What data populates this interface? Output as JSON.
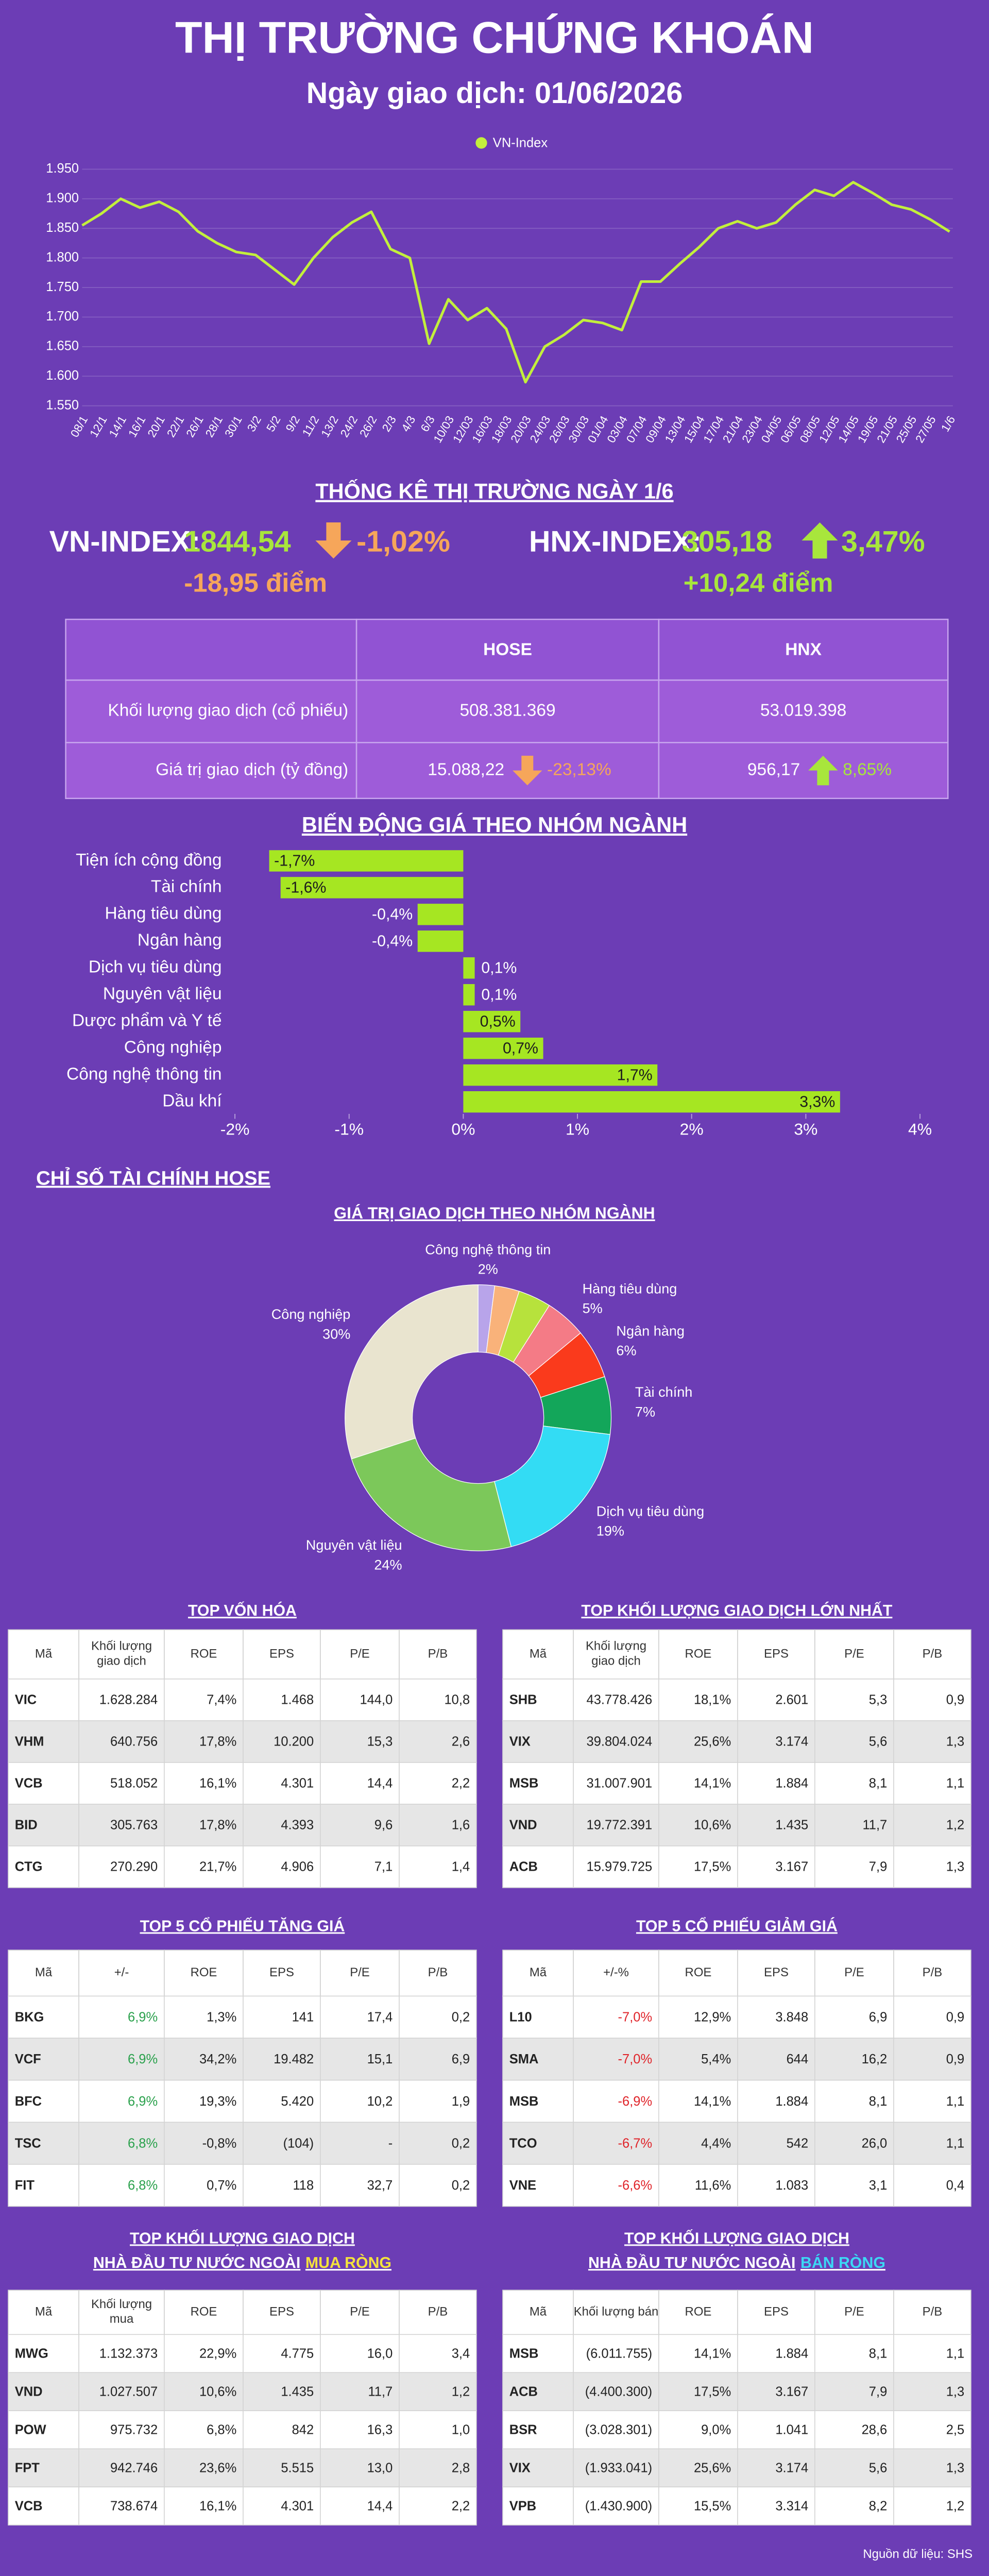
{
  "header": {
    "title": "THỊ TRƯỜNG CHỨNG KHOÁN",
    "subtitle": "Ngày giao dịch: 01/06/2026"
  },
  "chart_data": [
    {
      "type": "line",
      "categories": [
        "08/1",
        "12/1",
        "14/1",
        "16/1",
        "20/1",
        "22/1",
        "26/1",
        "28/1",
        "30/1",
        "3/2",
        "5/2",
        "9/2",
        "11/2",
        "13/2",
        "24/2",
        "26/2",
        "2/3",
        "4/3",
        "6/3",
        "10/03",
        "12/03",
        "16/03",
        "18/03",
        "20/03",
        "24/03",
        "26/03",
        "30/03",
        "01/04",
        "03/04",
        "07/04",
        "09/04",
        "13/04",
        "15/04",
        "17/04",
        "21/04",
        "23/04",
        "04/05",
        "06/05",
        "08/05",
        "12/05",
        "14/05",
        "19/05",
        "21/05",
        "25/05",
        "27/05",
        "1/6"
      ],
      "series": [
        {
          "name": "VN-Index",
          "color": "#c3ef3c",
          "values": [
            1855,
            1875,
            1900,
            1885,
            1895,
            1878,
            1845,
            1825,
            1810,
            1805,
            1780,
            1755,
            1800,
            1835,
            1860,
            1878,
            1815,
            1800,
            1655,
            1730,
            1695,
            1715,
            1680,
            1590,
            1650,
            1670,
            1695,
            1690,
            1678,
            1760,
            1760,
            1790,
            1818,
            1850,
            1862,
            1850,
            1860,
            1890,
            1915,
            1905,
            1928,
            1910,
            1890,
            1882,
            1865,
            1844.54
          ]
        }
      ],
      "ylim": [
        1550,
        1950
      ],
      "yticks": [
        {
          "value": 1950,
          "label": "1.950"
        },
        {
          "value": 1900,
          "label": "1.900"
        },
        {
          "value": 1850,
          "label": "1.850"
        },
        {
          "value": 1800,
          "label": "1.800"
        },
        {
          "value": 1750,
          "label": "1.750"
        },
        {
          "value": 1700,
          "label": "1.700"
        },
        {
          "value": 1650,
          "label": "1.650"
        },
        {
          "value": 1600,
          "label": "1.600"
        },
        {
          "value": 1550,
          "label": "1.550"
        }
      ],
      "grid": true,
      "legend": "top"
    },
    {
      "type": "bar",
      "orientation": "horizontal",
      "title": "BIẾN ĐỘNG GIÁ THEO NHÓM NGÀNH",
      "categories": [
        "Tiện ích cộng đồng",
        "Tài chính",
        "Hàng tiêu dùng",
        "Ngân hàng",
        "Dịch vụ tiêu dùng",
        "Nguyên vật liệu",
        "Dược phẩm và Y tế",
        "Công nghiệp",
        "Công nghệ thông tin",
        "Dầu khí"
      ],
      "values": [
        -1.7,
        -1.6,
        -0.4,
        -0.4,
        0.1,
        0.1,
        0.5,
        0.7,
        1.7,
        3.3
      ],
      "value_labels": [
        "-1,7%",
        "-1,6%",
        "-0,4%",
        "-0,4%",
        "0,1%",
        "0,1%",
        "0,5%",
        "0,7%",
        "1,7%",
        "3,3%"
      ],
      "color": "#a6e622",
      "xlim": [
        -2,
        4
      ],
      "xticks": [
        {
          "value": -2,
          "label": "-2%"
        },
        {
          "value": -1,
          "label": "-1%"
        },
        {
          "value": 0,
          "label": "0%"
        },
        {
          "value": 1,
          "label": "1%"
        },
        {
          "value": 2,
          "label": "2%"
        },
        {
          "value": 3,
          "label": "3%"
        },
        {
          "value": 4,
          "label": "4%"
        }
      ]
    },
    {
      "type": "pie",
      "donut": true,
      "title": "GIÁ TRỊ GIAO DỊCH THEO NHÓM NGÀNH",
      "categories": [
        "Công nghệ thông tin",
        null,
        null,
        "Hàng tiêu dùng",
        "Ngân hàng",
        "Tài chính",
        "Dịch vụ tiêu dùng",
        "Nguyên vật liệu",
        "Công nghiệp"
      ],
      "values": [
        2,
        3,
        4,
        5,
        6,
        7,
        19,
        24,
        30
      ],
      "value_labels": [
        "2%",
        null,
        null,
        "5%",
        "6%",
        "7%",
        "19%",
        "24%",
        "30%"
      ],
      "colors": [
        "#b8a4ea",
        "#f9b27a",
        "#b7e23c",
        "#f47b86",
        "#fa3a1c",
        "#13a65a",
        "#33dcf4",
        "#7cc85a",
        "#e9e4cf"
      ]
    }
  ],
  "stats": {
    "title": "THỐNG KÊ THỊ TRƯỜNG NGÀY 1/6",
    "indices": [
      {
        "name": "VN-INDEX:",
        "value": "1844,54",
        "change": "-1,02%",
        "points": "-18,95 điểm",
        "direction": "down",
        "value_color": "#a8e63c",
        "change_color": "#f6a65a"
      },
      {
        "name": "HNX-INDEX:",
        "value": "305,18",
        "change": "3,47%",
        "points": "+10,24 điểm",
        "direction": "up",
        "value_color": "#a8e63c",
        "change_color": "#a8e63c"
      }
    ]
  },
  "market_table": {
    "columns": [
      "HOSE",
      "HNX"
    ],
    "rows": [
      {
        "label": "Khối lượng giao dịch (cổ phiếu)",
        "cells": [
          {
            "value": "508.381.369"
          },
          {
            "value": "53.019.398"
          }
        ]
      },
      {
        "label": "Giá trị giao dịch (tỷ đồng)",
        "cells": [
          {
            "value": "15.088,22",
            "change": "-23,13%",
            "direction": "down",
            "color": "#f6a65a"
          },
          {
            "value": "956,17",
            "change": "8,65%",
            "direction": "up",
            "color": "#a8e63c"
          }
        ]
      }
    ]
  },
  "finance_title": "CHỈ SỐ TÀI CHÍNH HOSE",
  "tables": [
    {
      "title": [
        "TOP VỐN HÓA"
      ],
      "columns": [
        "Mã",
        [
          "Khối lượng",
          "giao dịch"
        ],
        "ROE",
        "EPS",
        "P/E",
        "P/B"
      ],
      "rows": [
        [
          "VIC",
          "1.628.284",
          "7,4%",
          "1.468",
          "144,0",
          "10,8"
        ],
        [
          "VHM",
          "640.756",
          "17,8%",
          "10.200",
          "15,3",
          "2,6"
        ],
        [
          "VCB",
          "518.052",
          "16,1%",
          "4.301",
          "14,4",
          "2,2"
        ],
        [
          "BID",
          "305.763",
          "17,8%",
          "4.393",
          "9,6",
          "1,6"
        ],
        [
          "CTG",
          "270.290",
          "21,7%",
          "4.906",
          "7,1",
          "1,4"
        ]
      ]
    },
    {
      "title": [
        "TOP KHỐI LƯỢNG GIAO DỊCH LỚN NHẤT"
      ],
      "columns": [
        "Mã",
        [
          "Khối lượng",
          "giao dịch"
        ],
        "ROE",
        "EPS",
        "P/E",
        "P/B"
      ],
      "rows": [
        [
          "SHB",
          "43.778.426",
          "18,1%",
          "2.601",
          "5,3",
          "0,9"
        ],
        [
          "VIX",
          "39.804.024",
          "25,6%",
          "3.174",
          "5,6",
          "1,3"
        ],
        [
          "MSB",
          "31.007.901",
          "14,1%",
          "1.884",
          "8,1",
          "1,1"
        ],
        [
          "VND",
          "19.772.391",
          "10,6%",
          "1.435",
          "11,7",
          "1,2"
        ],
        [
          "ACB",
          "15.979.725",
          "17,5%",
          "3.167",
          "7,9",
          "1,3"
        ]
      ]
    },
    {
      "title": [
        "TOP 5 CỔ PHIẾU TĂNG GIÁ"
      ],
      "columns": [
        "Mã",
        "+/-",
        "ROE",
        "EPS",
        "P/E",
        "P/B"
      ],
      "highlight_column": 1,
      "highlight_color": "#2aa14c",
      "rows": [
        [
          "BKG",
          "6,9%",
          "1,3%",
          "141",
          "17,4",
          "0,2"
        ],
        [
          "VCF",
          "6,9%",
          "34,2%",
          "19.482",
          "15,1",
          "6,9"
        ],
        [
          "BFC",
          "6,9%",
          "19,3%",
          "5.420",
          "10,2",
          "1,9"
        ],
        [
          "TSC",
          "6,8%",
          "-0,8%",
          "(104)",
          "-",
          "0,2"
        ],
        [
          "FIT",
          "6,8%",
          "0,7%",
          "118",
          "32,7",
          "0,2"
        ]
      ]
    },
    {
      "title": [
        "TOP 5 CỔ PHIẾU GIẢM GIÁ"
      ],
      "columns": [
        "Mã",
        "+/-%",
        "ROE",
        "EPS",
        "P/E",
        "P/B"
      ],
      "highlight_column": 1,
      "highlight_color": "#e0242a",
      "rows": [
        [
          "L10",
          "-7,0%",
          "12,9%",
          "3.848",
          "6,9",
          "0,9"
        ],
        [
          "SMA",
          "-7,0%",
          "5,4%",
          "644",
          "16,2",
          "0,9"
        ],
        [
          "MSB",
          "-6,9%",
          "14,1%",
          "1.884",
          "8,1",
          "1,1"
        ],
        [
          "TCO",
          "-6,7%",
          "4,4%",
          "542",
          "26,0",
          "1,1"
        ],
        [
          "VNE",
          "-6,6%",
          "11,6%",
          "1.083",
          "3,1",
          "0,4"
        ]
      ]
    },
    {
      "title": [
        "TOP KHỐI LƯỢNG GIAO DỊCH",
        "NHÀ ĐẦU TƯ NƯỚC NGOÀI"
      ],
      "title_highlight": "MUA RÒNG",
      "title_highlight_color": "#f4e33c",
      "columns": [
        "Mã",
        [
          "Khối lượng",
          "mua"
        ],
        "ROE",
        "EPS",
        "P/E",
        "P/B"
      ],
      "rows": [
        [
          "MWG",
          "1.132.373",
          "22,9%",
          "4.775",
          "16,0",
          "3,4"
        ],
        [
          "VND",
          "1.027.507",
          "10,6%",
          "1.435",
          "11,7",
          "1,2"
        ],
        [
          "POW",
          "975.732",
          "6,8%",
          "842",
          "16,3",
          "1,0"
        ],
        [
          "FPT",
          "942.746",
          "23,6%",
          "5.515",
          "13,0",
          "2,8"
        ],
        [
          "VCB",
          "738.674",
          "16,1%",
          "4.301",
          "14,4",
          "2,2"
        ]
      ]
    },
    {
      "title": [
        "TOP KHỐI LƯỢNG GIAO DỊCH",
        "NHÀ ĐẦU TƯ NƯỚC NGOÀI"
      ],
      "title_highlight": "BÁN RÒNG",
      "title_highlight_color": "#3cd8f4",
      "columns": [
        "Mã",
        "Khối lượng bán",
        "ROE",
        "EPS",
        "P/E",
        "P/B"
      ],
      "rows": [
        [
          "MSB",
          "(6.011.755)",
          "14,1%",
          "1.884",
          "8,1",
          "1,1"
        ],
        [
          "ACB",
          "(4.400.300)",
          "17,5%",
          "3.167",
          "7,9",
          "1,3"
        ],
        [
          "BSR",
          "(3.028.301)",
          "9,0%",
          "1.041",
          "28,6",
          "2,5"
        ],
        [
          "VIX",
          "(1.933.041)",
          "25,6%",
          "3.174",
          "5,6",
          "1,3"
        ],
        [
          "VPB",
          "(1.430.900)",
          "15,5%",
          "3.314",
          "8,2",
          "1,2"
        ]
      ]
    }
  ],
  "source": "Nguồn dữ liệu: SHS"
}
